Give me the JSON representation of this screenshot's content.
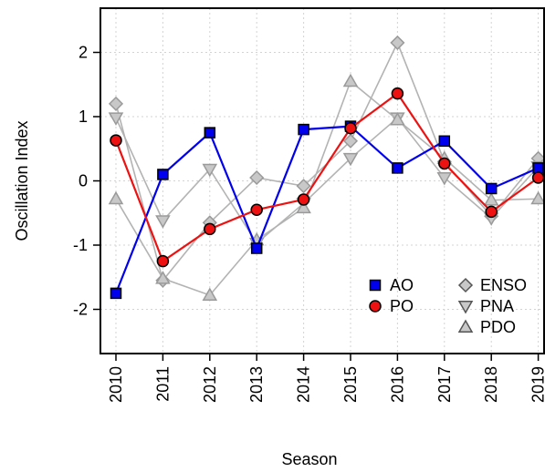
{
  "chart_data": {
    "type": "line",
    "title": "",
    "xlabel": "Season",
    "ylabel": "Oscillation Index",
    "x": [
      2010,
      2011,
      2012,
      2013,
      2014,
      2015,
      2016,
      2017,
      2018,
      2019
    ],
    "x_tick_labels": [
      "2010",
      "2011",
      "2012",
      "2013",
      "2014",
      "2015",
      "2016",
      "2017",
      "2018",
      "2019"
    ],
    "ylim": [
      -2.7,
      2.7
    ],
    "y_ticks": [
      -2,
      -1,
      0,
      1,
      2
    ],
    "y_tick_labels": [
      "-2",
      "-1",
      "0",
      "1",
      "2"
    ],
    "grid": true,
    "legend_position": "bottom-right",
    "series": [
      {
        "name": "ENSO",
        "marker": "diamond",
        "color": "#b3b3b3",
        "values": [
          1.2,
          -1.55,
          -0.65,
          0.05,
          -0.08,
          0.62,
          2.15,
          0.3,
          -0.55,
          0.35
        ]
      },
      {
        "name": "PNA",
        "marker": "triangle-down",
        "color": "#b3b3b3",
        "values": [
          0.98,
          -0.62,
          0.18,
          -0.97,
          -0.35,
          0.35,
          0.98,
          0.05,
          -0.58,
          0.22
        ]
      },
      {
        "name": "PDO",
        "marker": "triangle-up",
        "color": "#b3b3b3",
        "values": [
          -0.28,
          -1.52,
          -1.78,
          -0.92,
          -0.42,
          1.55,
          0.95,
          0.35,
          -0.3,
          -0.28
        ]
      },
      {
        "name": "AO",
        "marker": "square",
        "color": "#0000ee",
        "values": [
          -1.75,
          0.1,
          0.75,
          -1.05,
          0.8,
          0.85,
          0.2,
          0.62,
          -0.12,
          0.2
        ]
      },
      {
        "name": "PO",
        "marker": "circle",
        "color": "#ee1111",
        "values": [
          0.63,
          -1.25,
          -0.75,
          -0.45,
          -0.29,
          0.82,
          1.36,
          0.27,
          -0.48,
          0.05
        ]
      }
    ],
    "legend_columns": [
      [
        {
          "series": "AO"
        },
        {
          "series": "PO"
        }
      ],
      [
        {
          "series": "ENSO"
        },
        {
          "series": "PNA"
        },
        {
          "series": "PDO"
        }
      ]
    ]
  }
}
